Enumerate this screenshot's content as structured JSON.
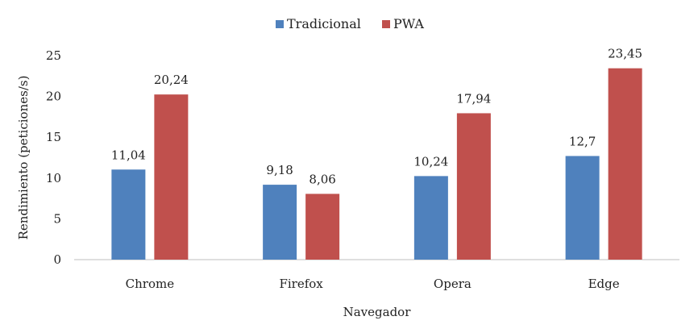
{
  "chart_data": {
    "type": "bar",
    "title": "",
    "xlabel": "Navegador",
    "ylabel": "Rendimiento (peticiones/s)",
    "categories": [
      "Chrome",
      "Firefox",
      "Opera",
      "Edge"
    ],
    "series": [
      {
        "name": "Tradicional",
        "color": "#4f81bd",
        "values": [
          11.04,
          9.18,
          10.24,
          12.7
        ],
        "labels": [
          "11,04",
          "9,18",
          "10,24",
          "12,7"
        ]
      },
      {
        "name": "PWA",
        "color": "#c0504d",
        "values": [
          20.24,
          8.06,
          17.94,
          23.45
        ],
        "labels": [
          "20,24",
          "8,06",
          "17,94",
          "23,45"
        ]
      }
    ],
    "ylim": [
      0,
      25
    ],
    "yticks": [
      0,
      5,
      10,
      15,
      20,
      25
    ],
    "grid": false,
    "legend_position": "top-center"
  }
}
